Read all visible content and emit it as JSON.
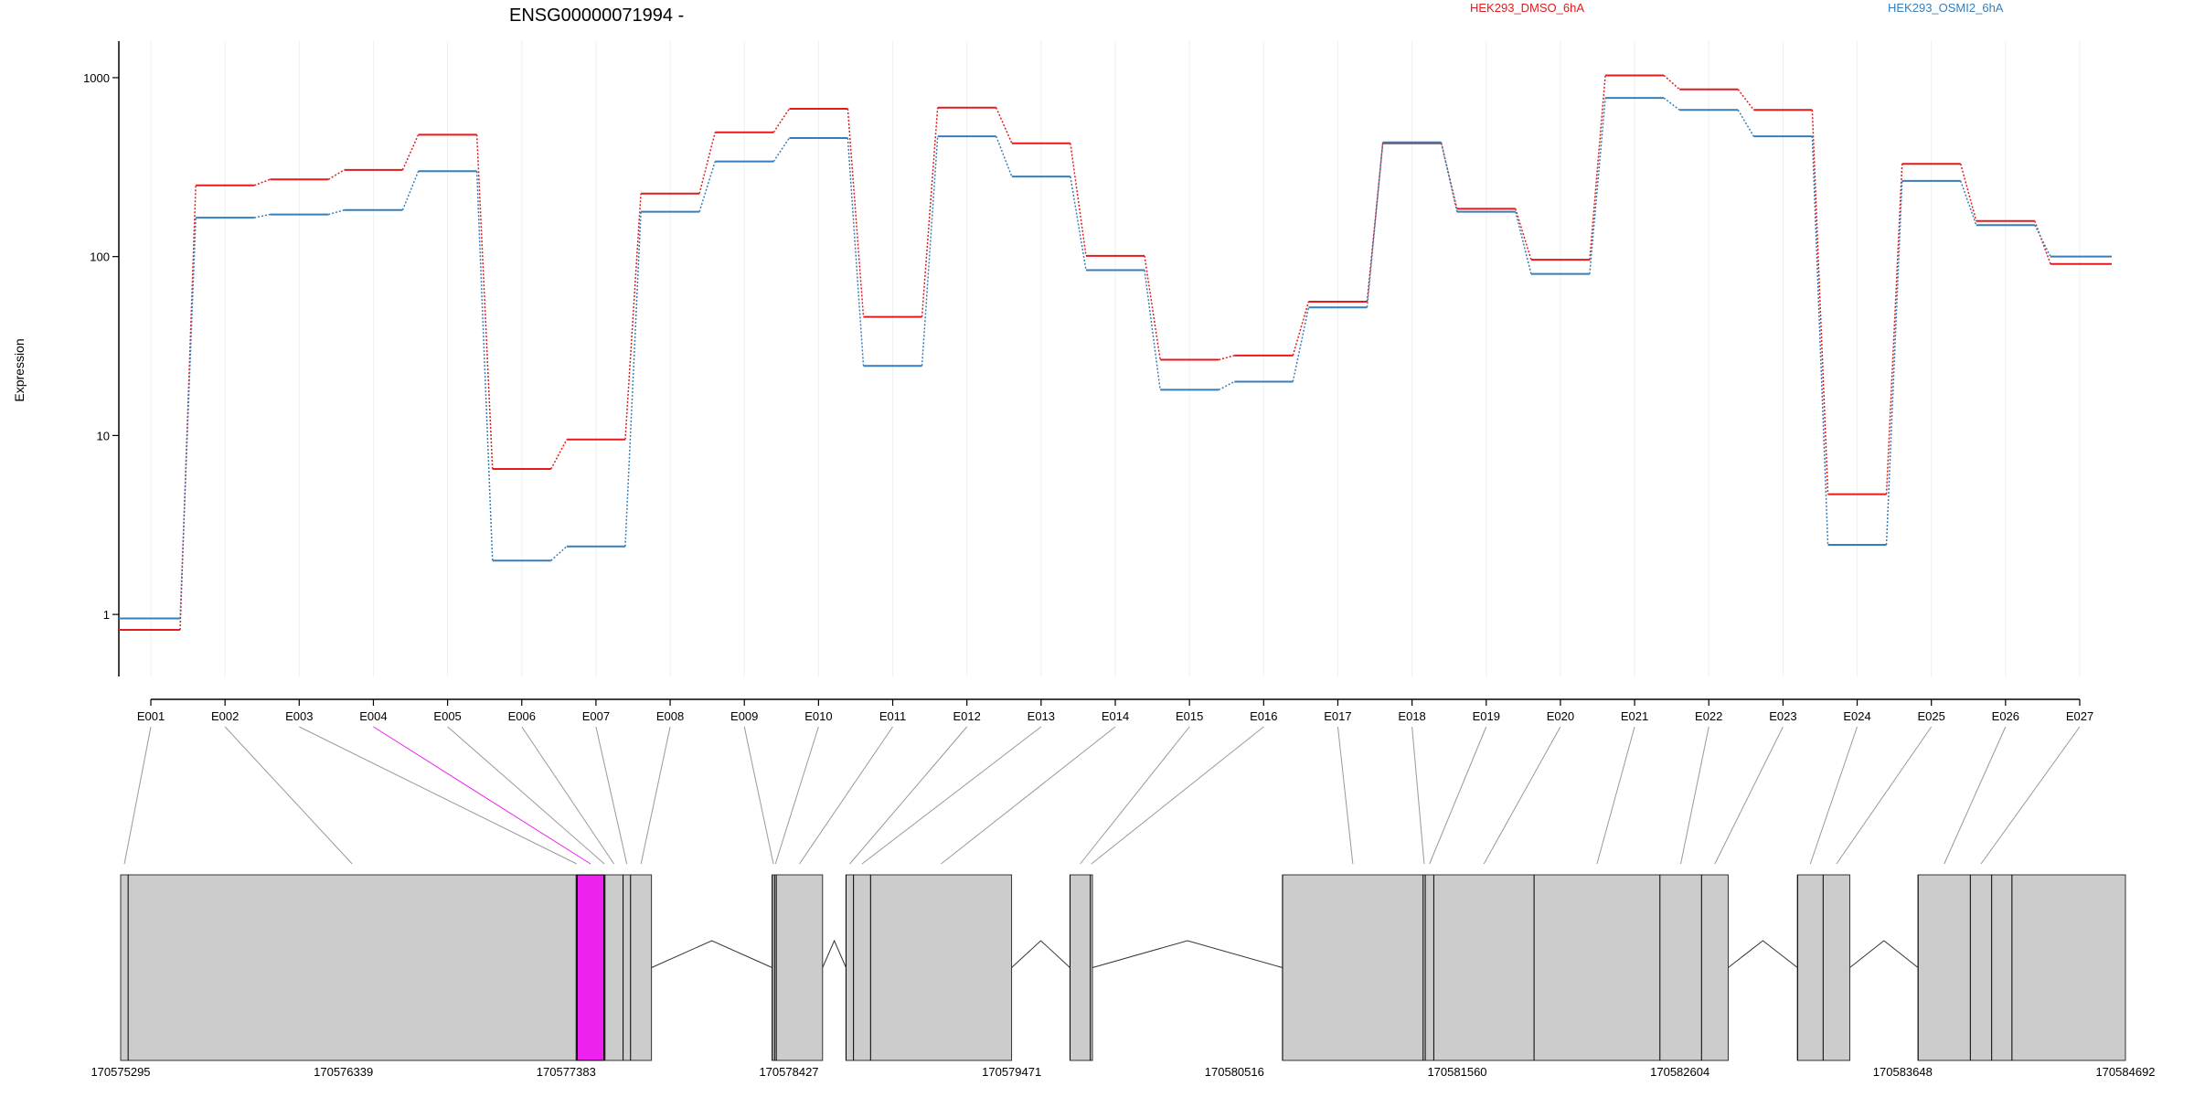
{
  "chart_data": {
    "type": "line",
    "title": "ENSG00000071994 -",
    "ylabel": "Expression",
    "xlabel": "",
    "yscale": "log",
    "ylim": [
      0.45,
      1600
    ],
    "yticks": [
      1,
      10,
      100,
      1000
    ],
    "ytick_labels": [
      "1",
      "10",
      "100",
      "1000"
    ],
    "grid": "vertical",
    "legend_placement": "top-right",
    "categories": [
      "E001",
      "E002",
      "E003",
      "E004",
      "E005",
      "E006",
      "E007",
      "E008",
      "E009",
      "E010",
      "E011",
      "E012",
      "E013",
      "E014",
      "E015",
      "E016",
      "E017",
      "E018",
      "E019",
      "E020",
      "E021",
      "E022",
      "E023",
      "E024",
      "E025",
      "E026",
      "E027"
    ],
    "series": [
      {
        "name": "HEK293_DMSO_6hA",
        "color": "#e41a1c",
        "values": [
          0.82,
          250,
          270,
          305,
          480,
          6.5,
          9.5,
          225,
          495,
          670,
          46,
          680,
          430,
          101,
          26.5,
          28,
          56,
          430,
          185,
          96,
          1030,
          860,
          660,
          4.7,
          330,
          158,
          91
        ]
      },
      {
        "name": "HEK293_OSMI2_6hA",
        "color": "#377eb8",
        "values": [
          0.95,
          165,
          172,
          182,
          300,
          2.0,
          2.4,
          178,
          340,
          460,
          24.5,
          470,
          280,
          84,
          18,
          20,
          52,
          435,
          178,
          80,
          770,
          660,
          470,
          2.45,
          265,
          150,
          100
        ]
      }
    ],
    "gene_model": {
      "genomic_ticks": [
        "170575295",
        "170576339",
        "170577383",
        "170578427",
        "170579471",
        "170580516",
        "170581560",
        "170582604",
        "170583648",
        "170584692"
      ],
      "genomic_range": [
        170575295,
        170584692
      ],
      "blocks": [
        [
          170575295,
          170577783
        ],
        [
          170578349,
          170578585
        ],
        [
          170578695,
          170579471
        ],
        [
          170579745,
          170579850
        ],
        [
          170580741,
          170582830
        ],
        [
          170583155,
          170583400
        ],
        [
          170583720,
          170584692
        ]
      ],
      "exon_spans": [
        [
          170575295,
          170575330
        ],
        [
          170575330,
          170577430
        ],
        [
          170577430,
          170577435
        ],
        [
          170577435,
          170577560
        ],
        [
          170577560,
          170577565
        ],
        [
          170577565,
          170577650
        ],
        [
          170577650,
          170577685
        ],
        [
          170577685,
          170577783
        ],
        [
          170578349,
          170578360
        ],
        [
          170578360,
          170578368
        ],
        [
          170578368,
          170578585
        ],
        [
          170578695,
          170578730
        ],
        [
          170578730,
          170578810
        ],
        [
          170578810,
          170579471
        ],
        [
          170579745,
          170579840
        ],
        [
          170579840,
          170579850
        ],
        [
          170580741,
          170581400
        ],
        [
          170581400,
          170581410
        ],
        [
          170581410,
          170581450
        ],
        [
          170581450,
          170581920
        ],
        [
          170581920,
          170582510
        ],
        [
          170582510,
          170582705
        ],
        [
          170582705,
          170582830
        ],
        [
          170583155,
          170583275
        ],
        [
          170583275,
          170583400
        ],
        [
          170583720,
          170583965
        ],
        [
          170583965,
          170584065
        ],
        [
          170584065,
          170584160
        ],
        [
          170584160,
          170584692
        ]
      ],
      "highlighted_exon": "E004",
      "highlight_color": "#ee22ee",
      "exon_fill": "#cccccc",
      "connector_color": "#999999"
    }
  }
}
